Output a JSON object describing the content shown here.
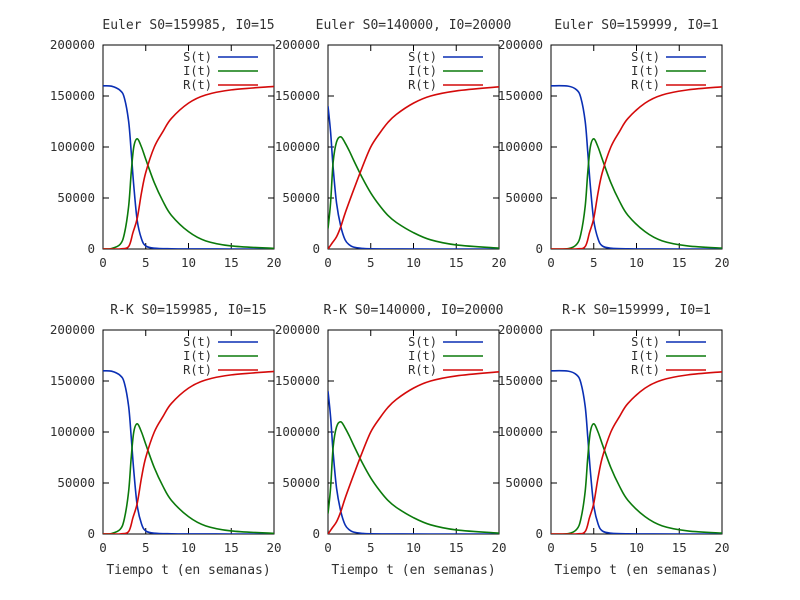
{
  "colors": {
    "S": "#0a2fb4",
    "I": "#0b7a0b",
    "R": "#d40a0a",
    "axis": "#000000"
  },
  "chart_data": [
    {
      "type": "line",
      "title": "Euler S0=159985, I0=15",
      "xlabel": "",
      "ylabel": "",
      "xlim": [
        0,
        20
      ],
      "ylim": [
        0,
        200000
      ],
      "xticks": [
        0,
        5,
        10,
        15,
        20
      ],
      "yticks": [
        0,
        50000,
        100000,
        150000,
        200000
      ],
      "grid": false,
      "legend": "top-right",
      "series": [
        {
          "name": "S(t)",
          "color": "S",
          "x": [
            0,
            1,
            2,
            2.5,
            3,
            3.3,
            3.6,
            4,
            4.5,
            5,
            6,
            8,
            10,
            15,
            20
          ],
          "y": [
            159985,
            159600,
            155500,
            148000,
            125000,
            95000,
            62000,
            28000,
            10000,
            3000,
            800,
            200,
            50,
            10,
            0
          ]
        },
        {
          "name": "I(t)",
          "color": "I",
          "x": [
            0,
            1,
            2,
            2.5,
            3,
            3.3,
            3.6,
            4,
            4.5,
            5,
            6,
            7,
            8,
            10,
            12,
            15,
            20
          ],
          "y": [
            15,
            500,
            4500,
            15000,
            42000,
            75000,
            100000,
            108000,
            100000,
            88000,
            65000,
            47000,
            33000,
            17000,
            8000,
            3000,
            600
          ]
        },
        {
          "name": "R(t)",
          "color": "R",
          "x": [
            0,
            2,
            3,
            3.5,
            4,
            4.5,
            5,
            6,
            7,
            8,
            10,
            12,
            15,
            20
          ],
          "y": [
            0,
            100,
            2500,
            16000,
            30000,
            55000,
            75000,
            100000,
            115000,
            128000,
            143000,
            151000,
            156000,
            159400
          ]
        }
      ]
    },
    {
      "type": "line",
      "title": "Euler S0=140000, I0=20000",
      "xlabel": "",
      "ylabel": "",
      "xlim": [
        0,
        20
      ],
      "ylim": [
        0,
        200000
      ],
      "xticks": [
        0,
        5,
        10,
        15,
        20
      ],
      "yticks": [
        0,
        50000,
        100000,
        150000,
        200000
      ],
      "grid": false,
      "legend": "top-right",
      "series": [
        {
          "name": "S(t)",
          "color": "S",
          "x": [
            0,
            0.3,
            0.6,
            1,
            1.5,
            2,
            2.5,
            3,
            4,
            5,
            8,
            12,
            20
          ],
          "y": [
            140000,
            115000,
            80000,
            45000,
            22000,
            9000,
            4000,
            1800,
            600,
            200,
            40,
            10,
            0
          ]
        },
        {
          "name": "I(t)",
          "color": "I",
          "x": [
            0,
            0.3,
            0.6,
            1,
            1.5,
            2,
            2.5,
            3,
            4,
            5,
            6,
            7,
            8,
            10,
            12,
            15,
            20
          ],
          "y": [
            20000,
            45000,
            85000,
            105000,
            110000,
            104000,
            96000,
            87000,
            70000,
            55000,
            43000,
            33000,
            26000,
            16000,
            9000,
            4000,
            800
          ]
        },
        {
          "name": "R(t)",
          "color": "R",
          "x": [
            0,
            0.5,
            1,
            1.5,
            2,
            3,
            4,
            5,
            6,
            7,
            8,
            10,
            12,
            15,
            20
          ],
          "y": [
            0,
            6000,
            12000,
            22000,
            35000,
            58000,
            80000,
            100000,
            113000,
            124000,
            132000,
            143000,
            150000,
            155000,
            159000
          ]
        }
      ]
    },
    {
      "type": "line",
      "title": "Euler S0=159999, I0=1",
      "xlabel": "",
      "ylabel": "",
      "xlim": [
        0,
        20
      ],
      "ylim": [
        0,
        200000
      ],
      "xticks": [
        0,
        5,
        10,
        15,
        20
      ],
      "yticks": [
        0,
        50000,
        100000,
        150000,
        200000
      ],
      "grid": false,
      "legend": "top-right",
      "series": [
        {
          "name": "S(t)",
          "color": "S",
          "x": [
            0,
            2,
            3,
            3.5,
            4,
            4.3,
            4.6,
            5,
            5.5,
            6,
            7,
            9,
            12,
            20
          ],
          "y": [
            159999,
            159700,
            156000,
            148000,
            125000,
            95000,
            62000,
            28000,
            10000,
            3000,
            800,
            150,
            30,
            0
          ]
        },
        {
          "name": "I(t)",
          "color": "I",
          "x": [
            0,
            2,
            3,
            3.5,
            4,
            4.3,
            4.6,
            5,
            5.5,
            6,
            7,
            8,
            9,
            11,
            13,
            16,
            20
          ],
          "y": [
            1,
            300,
            4500,
            15000,
            42000,
            75000,
            100000,
            108000,
            100000,
            88000,
            65000,
            47000,
            33000,
            17000,
            8000,
            3000,
            900
          ]
        },
        {
          "name": "R(t)",
          "color": "R",
          "x": [
            0,
            3,
            4,
            4.5,
            5,
            5.5,
            6,
            7,
            8,
            9,
            11,
            13,
            16,
            20
          ],
          "y": [
            0,
            100,
            2500,
            16000,
            30000,
            55000,
            75000,
            100000,
            115000,
            128000,
            143000,
            151000,
            156000,
            159000
          ]
        }
      ]
    },
    {
      "type": "line",
      "title": "R-K S0=159985, I0=15",
      "xlabel": "Tiempo t (en semanas)",
      "ylabel": "",
      "xlim": [
        0,
        20
      ],
      "ylim": [
        0,
        200000
      ],
      "xticks": [
        0,
        5,
        10,
        15,
        20
      ],
      "yticks": [
        0,
        50000,
        100000,
        150000,
        200000
      ],
      "grid": false,
      "legend": "top-right",
      "series": [
        {
          "name": "S(t)",
          "color": "S",
          "x": [
            0,
            1,
            2,
            2.5,
            3,
            3.3,
            3.6,
            4,
            4.5,
            5,
            6,
            8,
            10,
            15,
            20
          ],
          "y": [
            159985,
            159600,
            155500,
            148000,
            125000,
            95000,
            62000,
            28000,
            10000,
            3000,
            800,
            200,
            50,
            10,
            0
          ]
        },
        {
          "name": "I(t)",
          "color": "I",
          "x": [
            0,
            1,
            2,
            2.5,
            3,
            3.3,
            3.6,
            4,
            4.5,
            5,
            6,
            7,
            8,
            10,
            12,
            15,
            20
          ],
          "y": [
            15,
            500,
            4500,
            15000,
            42000,
            75000,
            100000,
            108000,
            100000,
            88000,
            65000,
            47000,
            33000,
            17000,
            8000,
            3000,
            600
          ]
        },
        {
          "name": "R(t)",
          "color": "R",
          "x": [
            0,
            2,
            3,
            3.5,
            4,
            4.5,
            5,
            6,
            7,
            8,
            10,
            12,
            15,
            20
          ],
          "y": [
            0,
            100,
            2500,
            16000,
            30000,
            55000,
            75000,
            100000,
            115000,
            128000,
            143000,
            151000,
            156000,
            159400
          ]
        }
      ]
    },
    {
      "type": "line",
      "title": "R-K S0=140000, I0=20000",
      "xlabel": "Tiempo t (en semanas)",
      "ylabel": "",
      "xlim": [
        0,
        20
      ],
      "ylim": [
        0,
        200000
      ],
      "xticks": [
        0,
        5,
        10,
        15,
        20
      ],
      "yticks": [
        0,
        50000,
        100000,
        150000,
        200000
      ],
      "grid": false,
      "legend": "top-right",
      "series": [
        {
          "name": "S(t)",
          "color": "S",
          "x": [
            0,
            0.3,
            0.6,
            1,
            1.5,
            2,
            2.5,
            3,
            4,
            5,
            8,
            12,
            20
          ],
          "y": [
            140000,
            115000,
            80000,
            45000,
            22000,
            9000,
            4000,
            1800,
            600,
            200,
            40,
            10,
            0
          ]
        },
        {
          "name": "I(t)",
          "color": "I",
          "x": [
            0,
            0.3,
            0.6,
            1,
            1.5,
            2,
            2.5,
            3,
            4,
            5,
            6,
            7,
            8,
            10,
            12,
            15,
            20
          ],
          "y": [
            20000,
            45000,
            85000,
            105000,
            110000,
            104000,
            96000,
            87000,
            70000,
            55000,
            43000,
            33000,
            26000,
            16000,
            9000,
            4000,
            800
          ]
        },
        {
          "name": "R(t)",
          "color": "R",
          "x": [
            0,
            0.5,
            1,
            1.5,
            2,
            3,
            4,
            5,
            6,
            7,
            8,
            10,
            12,
            15,
            20
          ],
          "y": [
            0,
            6000,
            12000,
            22000,
            35000,
            58000,
            80000,
            100000,
            113000,
            124000,
            132000,
            143000,
            150000,
            155000,
            159000
          ]
        }
      ]
    },
    {
      "type": "line",
      "title": "R-K S0=159999, I0=1",
      "xlabel": "Tiempo t (en semanas)",
      "ylabel": "",
      "xlim": [
        0,
        20
      ],
      "ylim": [
        0,
        200000
      ],
      "xticks": [
        0,
        5,
        10,
        15,
        20
      ],
      "yticks": [
        0,
        50000,
        100000,
        150000,
        200000
      ],
      "grid": false,
      "legend": "top-right",
      "series": [
        {
          "name": "S(t)",
          "color": "S",
          "x": [
            0,
            2,
            3,
            3.5,
            4,
            4.3,
            4.6,
            5,
            5.5,
            6,
            7,
            9,
            12,
            20
          ],
          "y": [
            159999,
            159700,
            156000,
            148000,
            125000,
            95000,
            62000,
            28000,
            10000,
            3000,
            800,
            150,
            30,
            0
          ]
        },
        {
          "name": "I(t)",
          "color": "I",
          "x": [
            0,
            2,
            3,
            3.5,
            4,
            4.3,
            4.6,
            5,
            5.5,
            6,
            7,
            8,
            9,
            11,
            13,
            16,
            20
          ],
          "y": [
            1,
            300,
            4500,
            15000,
            42000,
            75000,
            100000,
            108000,
            100000,
            88000,
            65000,
            47000,
            33000,
            17000,
            8000,
            3000,
            900
          ]
        },
        {
          "name": "R(t)",
          "color": "R",
          "x": [
            0,
            3,
            4,
            4.5,
            5,
            5.5,
            6,
            7,
            8,
            9,
            11,
            13,
            16,
            20
          ],
          "y": [
            0,
            100,
            2500,
            16000,
            30000,
            55000,
            75000,
            100000,
            115000,
            128000,
            143000,
            151000,
            156000,
            159000
          ]
        }
      ]
    }
  ]
}
